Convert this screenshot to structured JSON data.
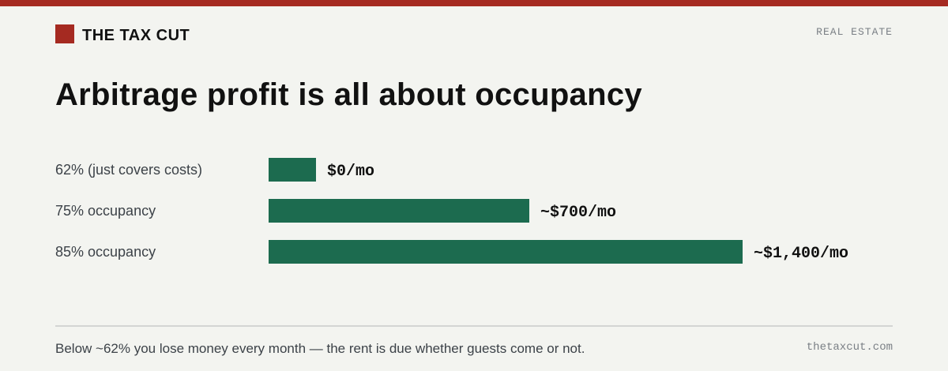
{
  "colors": {
    "accent": "#a52a21",
    "bar": "#1c6b4f",
    "background": "#f3f4f0"
  },
  "header": {
    "brand_icon": "square-logo-icon",
    "brand": "THE TAX CUT",
    "section": "REAL ESTATE",
    "headline": "Arbitrage profit is all about occupancy"
  },
  "chart_data": {
    "type": "bar",
    "orientation": "horizontal",
    "categories": [
      "62% (just covers costs)",
      "75% occupancy",
      "85% occupancy"
    ],
    "values": [
      0,
      700,
      1400
    ],
    "value_labels": [
      "$0/mo",
      "~$700/mo",
      "~$1,400/mo"
    ],
    "unit": "$/mo",
    "title": "Arbitrage profit is all about occupancy",
    "xlabel": "",
    "ylabel": "",
    "grid": false,
    "legend": "none",
    "note": "smallest bar drawn as a stub at $0"
  },
  "footer": {
    "note": "Below ~62% you lose money every month — the rent is due whether guests come or not.",
    "site": "thetaxcut.com"
  }
}
